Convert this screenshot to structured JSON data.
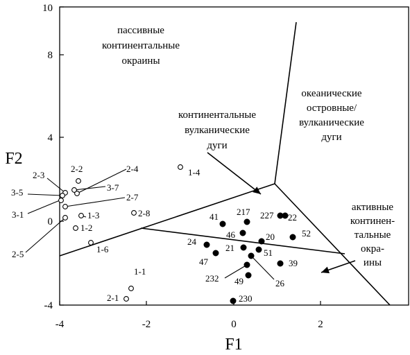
{
  "chart_data": {
    "type": "scatter",
    "title": "",
    "xlabel": "F1",
    "ylabel": "F2",
    "xlim": [
      -4,
      4
    ],
    "ylim": [
      -4,
      10
    ],
    "x_ticks": [
      "-4",
      "-2",
      "0",
      "2"
    ],
    "y_ticks": [
      "-4",
      "0",
      "4",
      "8",
      "10"
    ],
    "grid": false,
    "fields": [
      {
        "key": "passive",
        "text": [
          "пассивные",
          "континентальные",
          "окраины"
        ]
      },
      {
        "key": "oceanic",
        "text": [
          "океанические",
          "островные/",
          "вулканические",
          "дуги"
        ]
      },
      {
        "key": "volcanic",
        "text": [
          "континентальные",
          "вулканические",
          "дуги"
        ]
      },
      {
        "key": "active",
        "text": [
          "активные",
          "континен-",
          "тальные",
          "окра-",
          "ины"
        ]
      }
    ],
    "boundaries": [
      {
        "name": "b1",
        "points": [
          [
            -4.0,
            -1.6
          ],
          [
            0.95,
            1.85
          ]
        ]
      },
      {
        "name": "b2",
        "points": [
          [
            0.95,
            1.85
          ],
          [
            1.4,
            9.6
          ]
        ]
      },
      {
        "name": "b3",
        "points": [
          [
            0.95,
            1.85
          ],
          [
            3.6,
            -4.0
          ]
        ]
      },
      {
        "name": "b4",
        "points": [
          [
            -2.0,
            -0.35
          ],
          [
            2.6,
            -1.5
          ]
        ]
      }
    ],
    "arrows": [
      {
        "from": [
          -0.6,
          3.4
        ],
        "to": [
          0.6,
          1.25
        ]
      },
      {
        "from": [
          2.7,
          -1.9
        ],
        "to": [
          2.1,
          -2.25
        ]
      }
    ],
    "series": [
      {
        "marker": "open",
        "points": [
          {
            "label": "2-2",
            "x": -3.5,
            "y": 1.9
          },
          {
            "label": "2-4",
            "x": -3.55,
            "y": 1.45
          },
          {
            "label": "2-3",
            "x": -3.8,
            "y": 1.35
          },
          {
            "label": "3-7",
            "x": -3.6,
            "y": 1.5
          },
          {
            "label": "3-5",
            "x": -3.9,
            "y": 1.15
          },
          {
            "label": "2-7",
            "x": -3.85,
            "y": 0.7
          },
          {
            "label": "3-1",
            "x": -3.95,
            "y": 1.0
          },
          {
            "label": "1-3",
            "x": -3.5,
            "y": 0.3
          },
          {
            "label": "2-8",
            "x": -2.3,
            "y": 0.4
          },
          {
            "label": "2-5",
            "x": -3.85,
            "y": 0.2
          },
          {
            "label": "1-2",
            "x": -3.65,
            "y": -0.3
          },
          {
            "label": "1-6",
            "x": -3.25,
            "y": -1.05
          },
          {
            "label": "1-4",
            "x": -1.25,
            "y": 2.6
          },
          {
            "label": "1-1",
            "x": -2.35,
            "y": -3.2
          },
          {
            "label": "2-1",
            "x": -2.5,
            "y": -3.6
          }
        ]
      },
      {
        "marker": "filled",
        "points": [
          {
            "label": "41",
            "x": -0.25,
            "y": -0.1
          },
          {
            "label": "217",
            "x": 0.3,
            "y": 0.0
          },
          {
            "label": "227",
            "x": 1.1,
            "y": 0.3
          },
          {
            "label": "22",
            "x": 1.25,
            "y": 0.25
          },
          {
            "label": "46",
            "x": 0.25,
            "y": -0.6
          },
          {
            "label": "20",
            "x": 0.65,
            "y": -0.9
          },
          {
            "label": "52",
            "x": 1.4,
            "y": -0.75
          },
          {
            "label": "24",
            "x": -0.6,
            "y": -1.15
          },
          {
            "label": "21",
            "x": 0.25,
            "y": -1.25
          },
          {
            "label": "51",
            "x": 0.6,
            "y": -1.35
          },
          {
            "label": "47",
            "x": -0.4,
            "y": -1.55
          },
          {
            "label": "39",
            "x": 1.05,
            "y": -2.0
          },
          {
            "label": "232",
            "x": 0.35,
            "y": -2.1
          },
          {
            "label": "26",
            "x": 0.45,
            "y": -1.7
          },
          {
            "label": "49",
            "x": 0.35,
            "y": -2.6
          },
          {
            "label": "230",
            "x": 0.0,
            "y": -3.8
          }
        ]
      }
    ]
  }
}
